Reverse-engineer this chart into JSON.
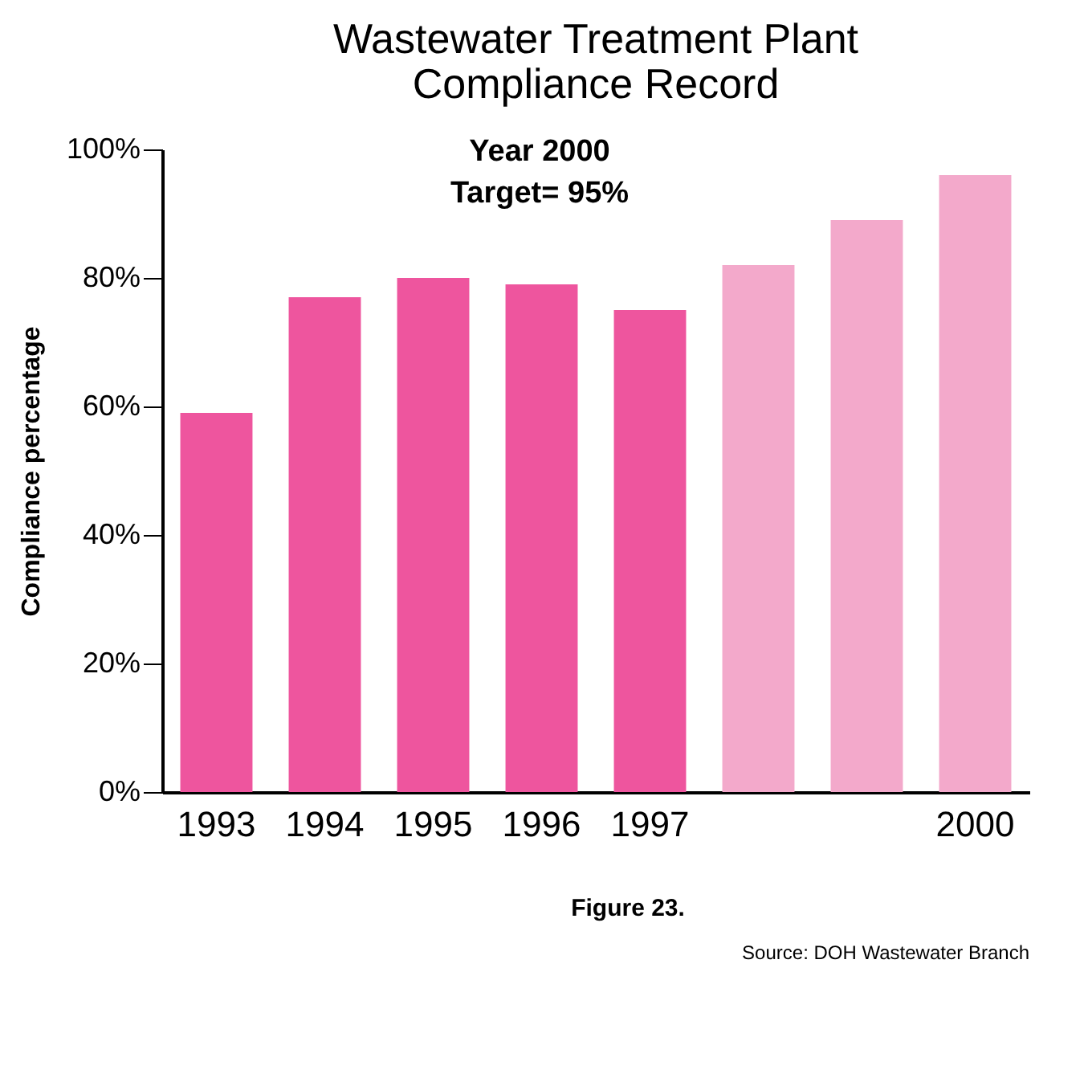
{
  "chart_data": {
    "type": "bar",
    "title": "Wastewater Treatment Plant\nCompliance Record",
    "ylabel": "Compliance percentage",
    "categories": [
      "1993",
      "1994",
      "1995",
      "1996",
      "1997",
      null,
      null,
      "2000"
    ],
    "values": [
      59,
      77,
      80,
      79,
      75,
      82,
      89,
      96
    ],
    "colors": [
      "#ee559e",
      "#ee559e",
      "#ee559e",
      "#ee559e",
      "#ee559e",
      "#f3a9cb",
      "#f3a9cb",
      "#f3a9cb"
    ],
    "ylim": [
      0,
      100
    ],
    "yticks": [
      {
        "value": 0,
        "label": "0%"
      },
      {
        "value": 20,
        "label": "20%"
      },
      {
        "value": 40,
        "label": "40%"
      },
      {
        "value": 60,
        "label": "60%"
      },
      {
        "value": 80,
        "label": "80%"
      },
      {
        "value": 100,
        "label": "100%"
      }
    ],
    "grid": false,
    "annotations": [
      "Year 2000\nTarget= 95%",
      "Figure 23.",
      "Source: DOH Wastewater Branch"
    ]
  }
}
